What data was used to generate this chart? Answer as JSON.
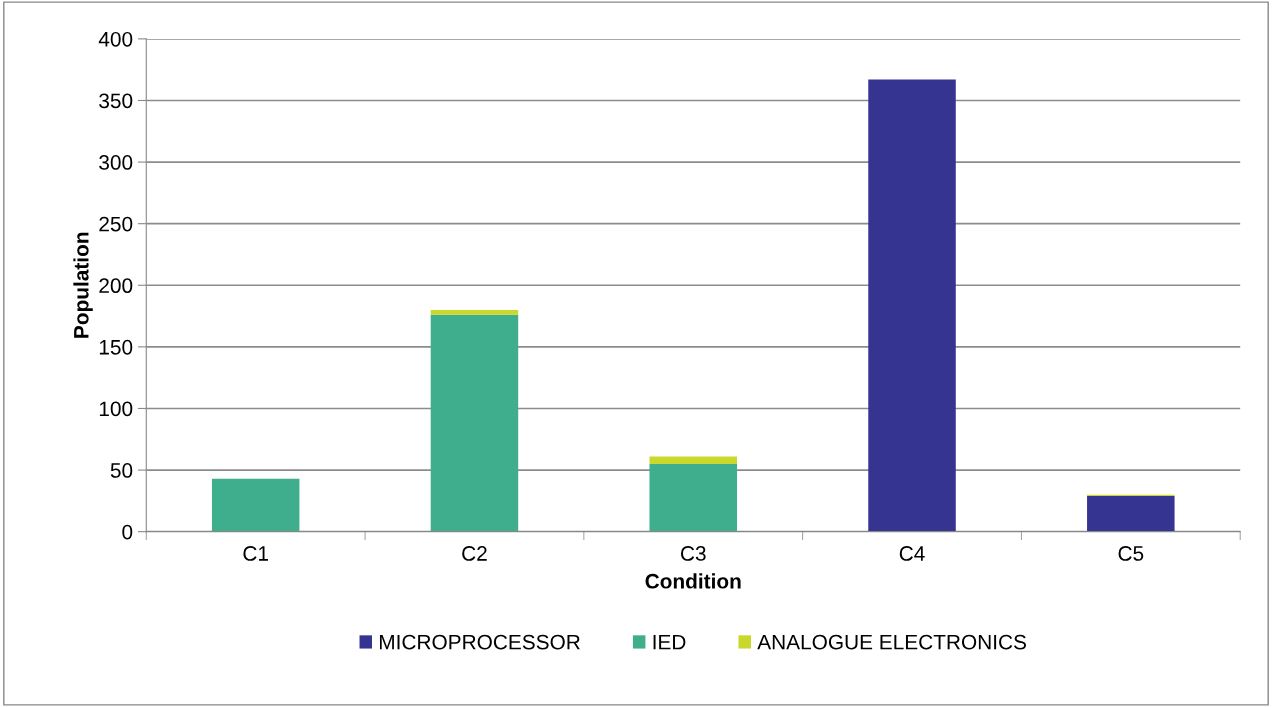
{
  "chart_data": {
    "type": "bar",
    "stacked": true,
    "xlabel": "Condition",
    "ylabel": "Population",
    "categories": [
      "C1",
      "C2",
      "C3",
      "C4",
      "C5"
    ],
    "series": [
      {
        "name": "MICROPROCESSOR",
        "color": "#353591",
        "values": [
          0,
          0,
          0,
          367,
          29
        ]
      },
      {
        "name": "IED",
        "color": "#3eae8c",
        "values": [
          43,
          176,
          55,
          0,
          0
        ]
      },
      {
        "name": "ANALOGUE ELECTRONICS",
        "color": "#c9d82a",
        "values": [
          0,
          4,
          6,
          0,
          1
        ]
      }
    ],
    "ylim": [
      0,
      400
    ],
    "yticks": [
      0,
      50,
      100,
      150,
      200,
      250,
      300,
      350,
      400
    ],
    "grid": "y",
    "legend": "bottom"
  }
}
